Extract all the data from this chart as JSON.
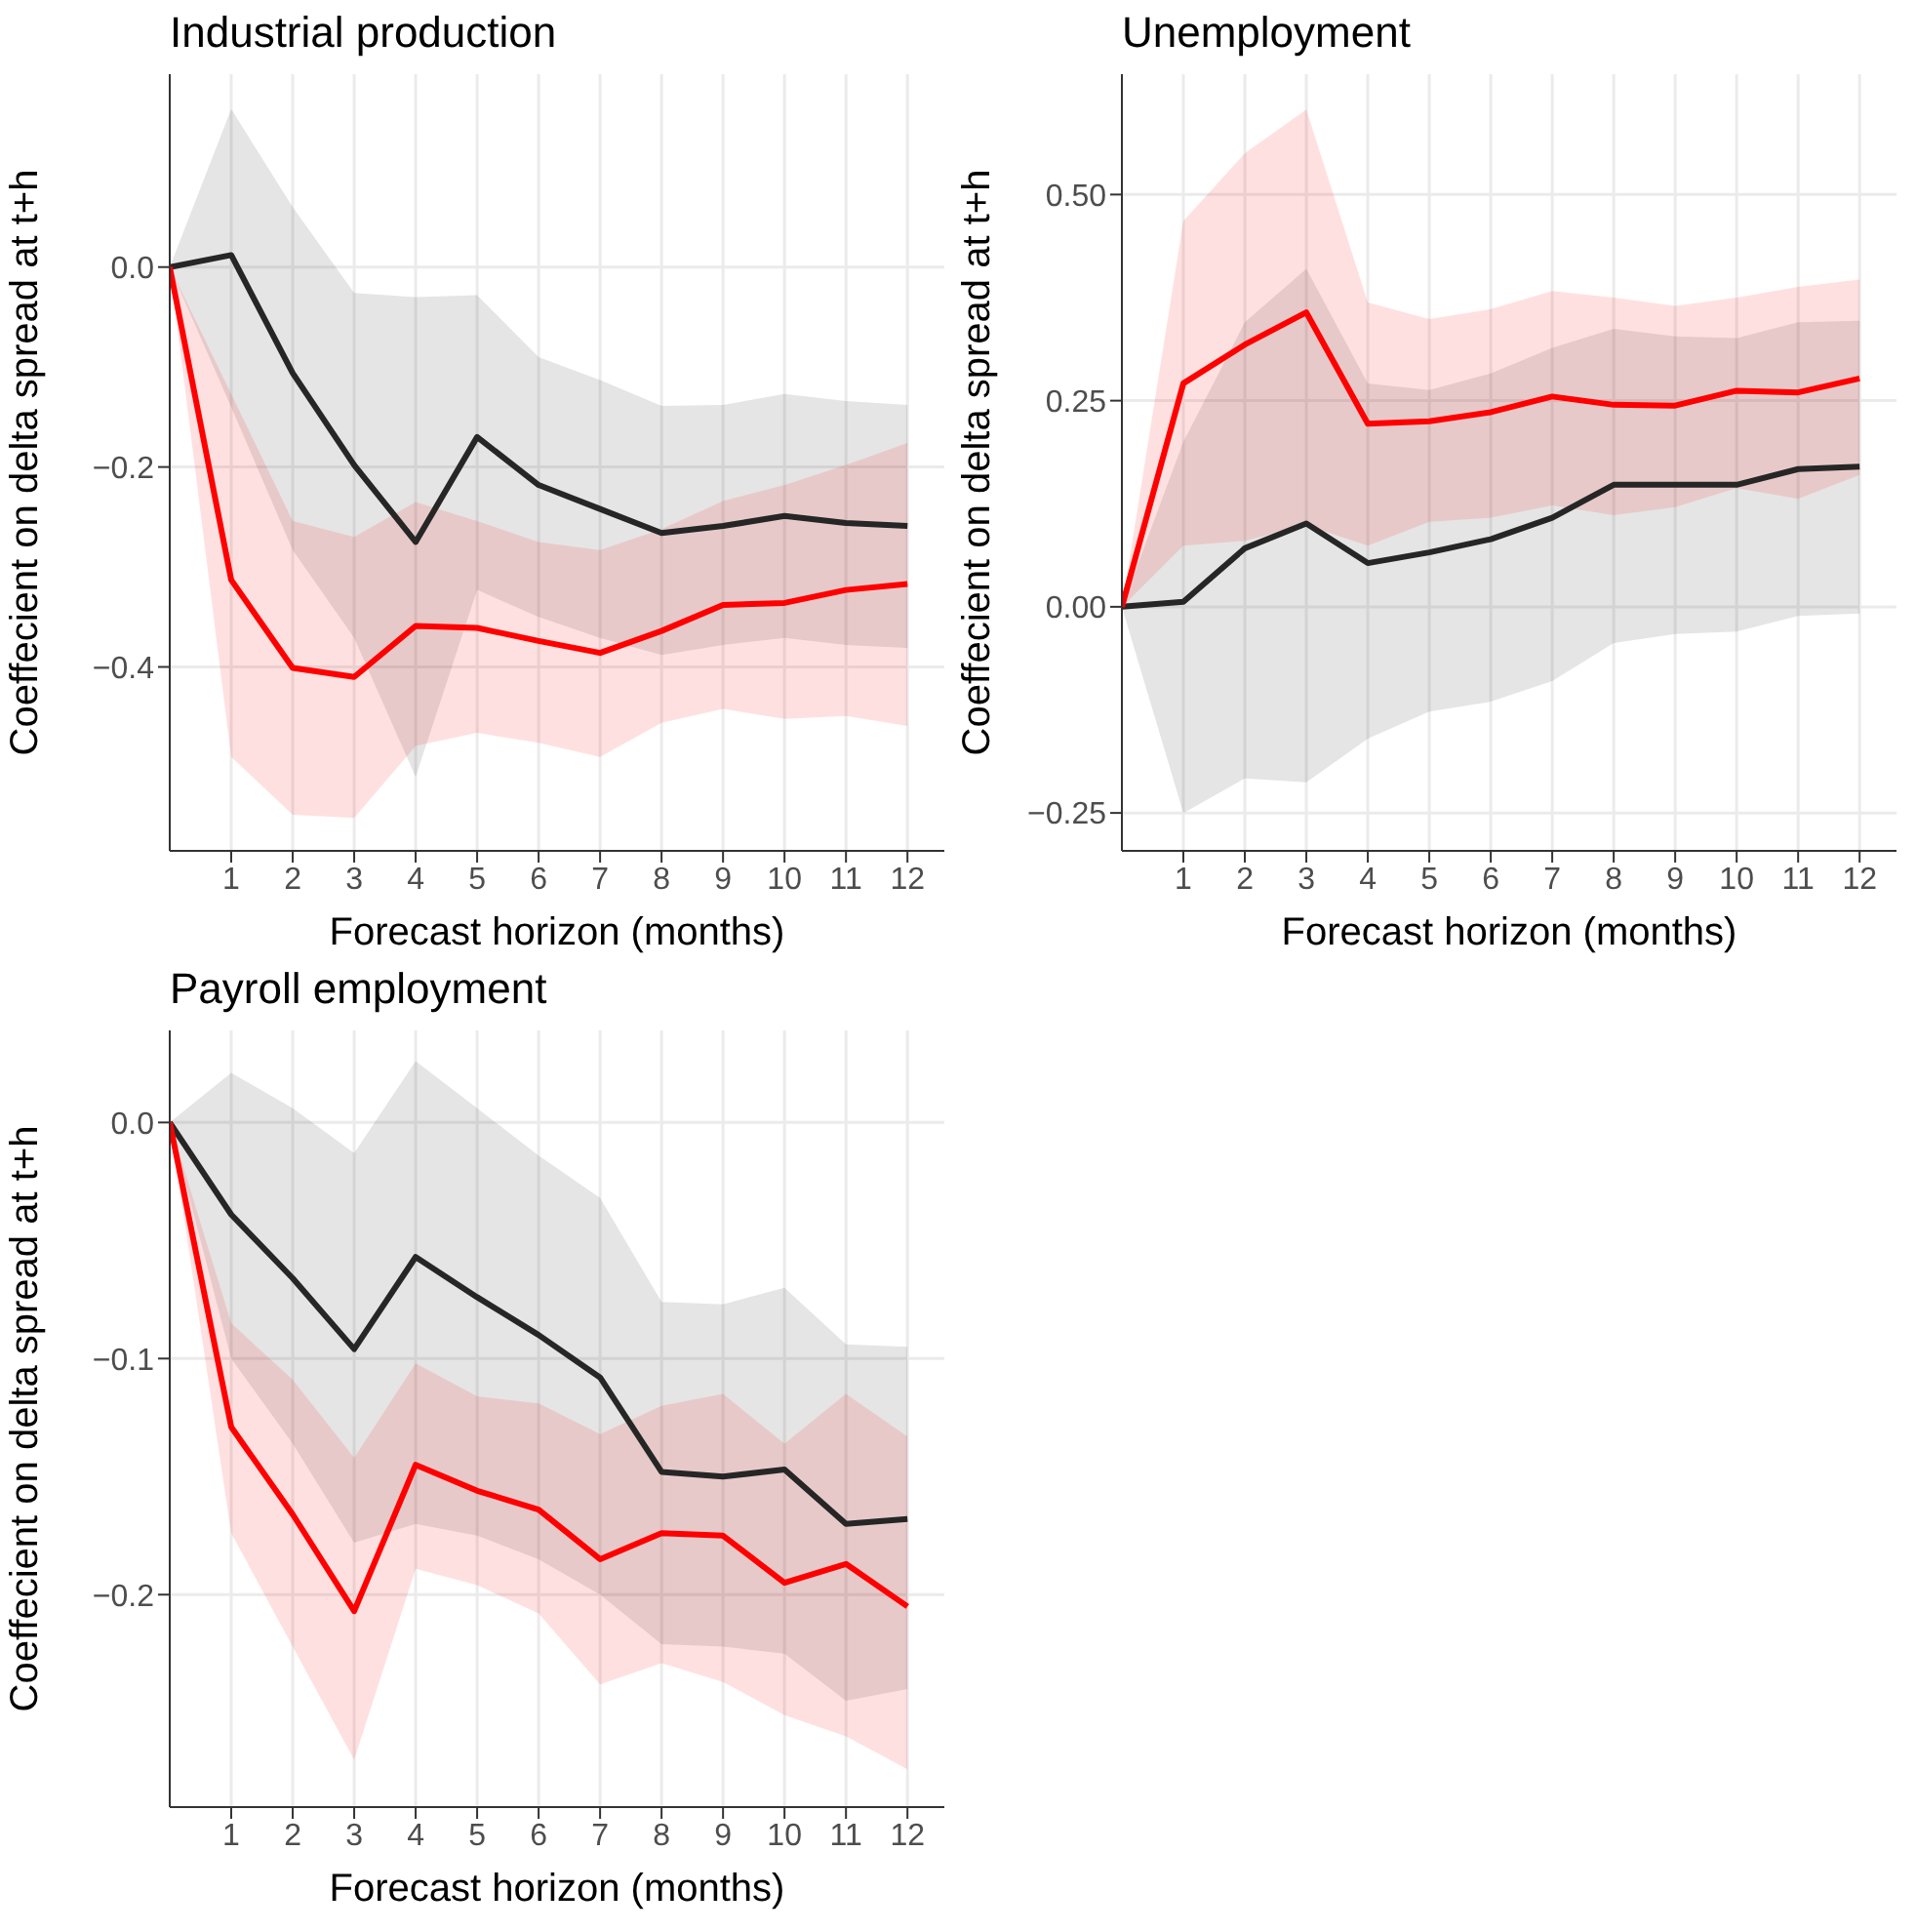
{
  "chart_data": [
    {
      "type": "line",
      "title": "Industrial production",
      "xlabel": "Forecast horizon (months)",
      "ylabel": "Coeffecient on delta spread at t+h",
      "x": [
        0,
        1,
        2,
        3,
        4,
        5,
        6,
        7,
        8,
        9,
        10,
        11,
        12
      ],
      "xlim": [
        0,
        12.6
      ],
      "xticks": [
        1,
        2,
        3,
        4,
        5,
        6,
        7,
        8,
        9,
        10,
        11,
        12
      ],
      "ylim": [
        -0.584,
        0.193
      ],
      "yticks": [
        {
          "value": -0.4,
          "label": "−0.4"
        },
        {
          "value": -0.2,
          "label": "−0.2"
        },
        {
          "value": 0,
          "label": "0.0"
        }
      ],
      "grid": true,
      "legend": false,
      "marker": "none",
      "line_style": "solid",
      "series": [
        {
          "color": "#262626",
          "values": [
            0,
            0.012,
            -0.106,
            -0.198,
            -0.275,
            -0.17,
            -0.218,
            -0.242,
            -0.266,
            -0.259,
            -0.249,
            -0.256,
            -0.259
          ],
          "lower": [
            0,
            -0.14,
            -0.283,
            -0.371,
            -0.51,
            -0.323,
            -0.35,
            -0.371,
            -0.388,
            -0.378,
            -0.371,
            -0.378,
            -0.381
          ],
          "upper": [
            0,
            0.158,
            0.06,
            -0.026,
            -0.03,
            -0.028,
            -0.09,
            -0.113,
            -0.139,
            -0.138,
            -0.127,
            -0.134,
            -0.138
          ]
        },
        {
          "color": "#ff0000",
          "values": [
            0,
            -0.313,
            -0.401,
            -0.41,
            -0.359,
            -0.361,
            -0.374,
            -0.386,
            -0.364,
            -0.338,
            -0.336,
            -0.323,
            -0.317
          ],
          "lower": [
            0,
            -0.49,
            -0.548,
            -0.551,
            -0.479,
            -0.466,
            -0.476,
            -0.49,
            -0.456,
            -0.442,
            -0.452,
            -0.449,
            -0.459
          ],
          "upper": [
            0,
            -0.127,
            -0.254,
            -0.27,
            -0.235,
            -0.254,
            -0.275,
            -0.283,
            -0.262,
            -0.234,
            -0.218,
            -0.198,
            -0.176
          ]
        }
      ]
    },
    {
      "type": "line",
      "title": "Unemployment",
      "xlabel": "Forecast horizon (months)",
      "ylabel": "Coeffecient on delta spread at t+h",
      "x": [
        0,
        1,
        2,
        3,
        4,
        5,
        6,
        7,
        8,
        9,
        10,
        11,
        12
      ],
      "xlim": [
        0,
        12.6
      ],
      "xticks": [
        1,
        2,
        3,
        4,
        5,
        6,
        7,
        8,
        9,
        10,
        11,
        12
      ],
      "ylim": [
        -0.296,
        0.646
      ],
      "yticks": [
        {
          "value": -0.25,
          "label": "−0.25"
        },
        {
          "value": 0,
          "label": "0.00"
        },
        {
          "value": 0.25,
          "label": "0.25"
        },
        {
          "value": 0.5,
          "label": "0.50"
        }
      ],
      "grid": true,
      "legend": false,
      "marker": "none",
      "line_style": "solid",
      "series": [
        {
          "color": "#262626",
          "values": [
            0,
            0.006,
            0.071,
            0.101,
            0.053,
            0.066,
            0.082,
            0.108,
            0.148,
            0.148,
            0.148,
            0.167,
            0.17
          ],
          "lower": [
            0,
            -0.25,
            -0.208,
            -0.213,
            -0.16,
            -0.127,
            -0.115,
            -0.09,
            -0.044,
            -0.033,
            -0.03,
            -0.011,
            -0.008
          ],
          "upper": [
            0,
            0.2,
            0.345,
            0.41,
            0.271,
            0.263,
            0.283,
            0.314,
            0.337,
            0.328,
            0.326,
            0.345,
            0.347
          ]
        },
        {
          "color": "#ff0000",
          "values": [
            0,
            0.271,
            0.318,
            0.357,
            0.222,
            0.225,
            0.236,
            0.255,
            0.245,
            0.244,
            0.262,
            0.26,
            0.277
          ],
          "lower": [
            0,
            0.074,
            0.08,
            0.099,
            0.074,
            0.103,
            0.108,
            0.123,
            0.111,
            0.121,
            0.144,
            0.131,
            0.16
          ],
          "upper": [
            0,
            0.468,
            0.55,
            0.603,
            0.369,
            0.349,
            0.361,
            0.383,
            0.375,
            0.365,
            0.375,
            0.388,
            0.397
          ]
        }
      ]
    },
    {
      "type": "line",
      "title": "Payroll employment",
      "xlabel": "Forecast horizon (months)",
      "ylabel": "Coeffecient on delta spread at t+h",
      "x": [
        0,
        1,
        2,
        3,
        4,
        5,
        6,
        7,
        8,
        9,
        10,
        11,
        12
      ],
      "xlim": [
        0,
        12.6
      ],
      "xticks": [
        1,
        2,
        3,
        4,
        5,
        6,
        7,
        8,
        9,
        10,
        11,
        12
      ],
      "ylim": [
        -0.29,
        0.039
      ],
      "yticks": [
        {
          "value": -0.2,
          "label": "−0.2"
        },
        {
          "value": -0.1,
          "label": "−0.1"
        },
        {
          "value": 0,
          "label": "0.0"
        }
      ],
      "grid": true,
      "legend": false,
      "marker": "none",
      "line_style": "solid",
      "series": [
        {
          "color": "#262626",
          "values": [
            0,
            -0.039,
            -0.066,
            -0.096,
            -0.057,
            -0.074,
            -0.09,
            -0.108,
            -0.148,
            -0.15,
            -0.147,
            -0.17,
            -0.168
          ],
          "lower": [
            0,
            -0.1,
            -0.136,
            -0.178,
            -0.17,
            -0.175,
            -0.185,
            -0.2,
            -0.221,
            -0.222,
            -0.225,
            -0.245,
            -0.24
          ],
          "upper": [
            0,
            0.021,
            0.006,
            -0.013,
            0.026,
            0.006,
            -0.014,
            -0.032,
            -0.076,
            -0.077,
            -0.07,
            -0.094,
            -0.095
          ]
        },
        {
          "color": "#ff0000",
          "values": [
            0,
            -0.129,
            -0.166,
            -0.207,
            -0.145,
            -0.156,
            -0.164,
            -0.185,
            -0.174,
            -0.175,
            -0.195,
            -0.187,
            -0.205
          ],
          "lower": [
            0,
            -0.174,
            -0.222,
            -0.27,
            -0.189,
            -0.196,
            -0.208,
            -0.238,
            -0.229,
            -0.237,
            -0.251,
            -0.26,
            -0.274
          ],
          "upper": [
            0,
            -0.085,
            -0.109,
            -0.142,
            -0.102,
            -0.116,
            -0.119,
            -0.132,
            -0.12,
            -0.115,
            -0.136,
            -0.115,
            -0.133
          ]
        }
      ]
    }
  ]
}
